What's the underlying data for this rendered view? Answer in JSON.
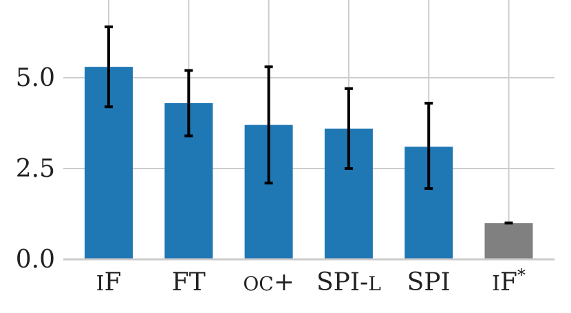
{
  "chart_data": {
    "type": "bar",
    "title": "",
    "xlabel": "",
    "ylabel": "",
    "categories": [
      "IF",
      "FT",
      "OC+",
      "SPI-L",
      "SPI",
      "IF*"
    ],
    "values": [
      5.3,
      4.3,
      3.7,
      3.6,
      3.1,
      1.0
    ],
    "error_low": [
      4.2,
      3.4,
      2.1,
      2.5,
      1.95,
      1.0
    ],
    "error_high": [
      6.4,
      5.2,
      5.3,
      4.7,
      4.3,
      1.0
    ],
    "bar_colors": [
      "#1f77b4",
      "#1f77b4",
      "#1f77b4",
      "#1f77b4",
      "#1f77b4",
      "#808080"
    ],
    "ylim": [
      0,
      6.8
    ],
    "yticks": [
      0.0,
      2.5,
      5.0
    ],
    "ytick_labels": [
      "0.0",
      "2.5",
      "5.0"
    ],
    "grid": true,
    "legend": "none"
  }
}
